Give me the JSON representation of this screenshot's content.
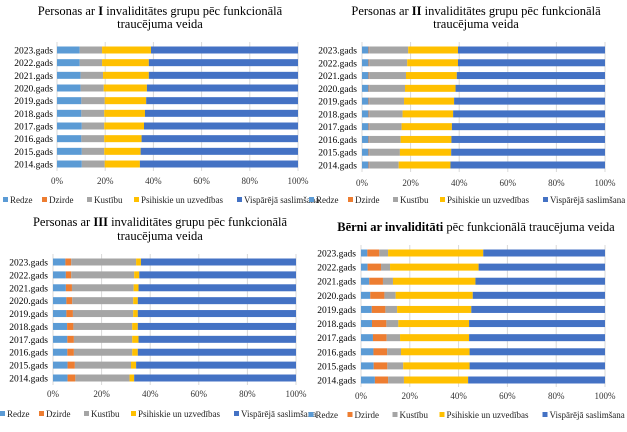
{
  "legend": [
    "Redze",
    "Dzirde",
    "Kustību",
    "Psihiskie un uzvedības",
    "Vispārējā saslimšana"
  ],
  "colors": [
    "#5B9BD5",
    "#ED7D31",
    "#A5A5A5",
    "#FFC000",
    "#4472C4"
  ],
  "chart_data": [
    {
      "type": "bar",
      "orientation": "horizontal",
      "stacked": "percent",
      "title_prefix": "Personas ar ",
      "title_bold": "I",
      "title_suffix": " invaliditātes  grupu pēc funkcionālā",
      "title_line2": "traucējuma veida",
      "categories": [
        "2014.gads",
        "2015.gads",
        "2016.gads",
        "2017.gads",
        "2018.gads",
        "2019.gads",
        "2020.gads",
        "2021.gads",
        "2022.gads",
        "2023.gads"
      ],
      "xticks": [
        "0%",
        "20%",
        "40%",
        "60%",
        "80%",
        "100%"
      ],
      "xlim": [
        0,
        100
      ],
      "grid": true,
      "legend_position": "bottom",
      "series": [
        {
          "name": "Redze",
          "values": [
            10.3,
            10.3,
            10.1,
            10.3,
            10.1,
            10.1,
            9.8,
            9.8,
            9.4,
            9.4
          ]
        },
        {
          "name": "Dzirde",
          "values": [
            0,
            0,
            0,
            0,
            0,
            0,
            0,
            0,
            0,
            0
          ]
        },
        {
          "name": "Kustību",
          "values": [
            9.5,
            9.3,
            9.5,
            9.3,
            9.5,
            9.7,
            9.6,
            9.3,
            9.3,
            9.3
          ]
        },
        {
          "name": "Psihiskie un uzvedības",
          "values": [
            14.6,
            15.1,
            15.5,
            16.5,
            16.9,
            17.2,
            17.9,
            19.0,
            19.4,
            20.3
          ]
        },
        {
          "name": "Vispārējā saslimšana",
          "values": [
            65.6,
            65.3,
            64.9,
            63.9,
            63.5,
            63.0,
            62.7,
            61.9,
            61.9,
            61.0
          ]
        }
      ]
    },
    {
      "type": "bar",
      "orientation": "horizontal",
      "stacked": "percent",
      "title_prefix": "Personas ar ",
      "title_bold": "II",
      "title_suffix": " invaliditātes grupu pēc funkcionālā",
      "title_line2": "traucējuma veida",
      "categories": [
        "2014.gads",
        "2015.gads",
        "2016.gads",
        "2017.gads",
        "2018.gads",
        "2019.gads",
        "2020.gads",
        "2021.gads",
        "2022.gads",
        "2023.gads"
      ],
      "xticks": [
        "0%",
        "20%",
        "40%",
        "60%",
        "80%",
        "100%"
      ],
      "xlim": [
        0,
        100
      ],
      "grid": true,
      "legend_position": "bottom",
      "series": [
        {
          "name": "Redze",
          "values": [
            2.7,
            2.7,
            2.7,
            2.7,
            2.7,
            2.7,
            2.7,
            2.7,
            2.7,
            2.7
          ]
        },
        {
          "name": "Dzirde",
          "values": [
            0.3,
            0.3,
            0.3,
            0.3,
            0.3,
            0.3,
            0.3,
            0.3,
            0.3,
            0.3
          ]
        },
        {
          "name": "Kustību",
          "values": [
            12.1,
            12.6,
            12.9,
            13.3,
            13.7,
            14.3,
            14.7,
            15.1,
            15.6,
            16.0
          ]
        },
        {
          "name": "Psihiskie un uzvedības",
          "values": [
            21.3,
            21.1,
            20.9,
            20.7,
            20.8,
            20.6,
            20.8,
            20.9,
            20.9,
            20.5
          ]
        },
        {
          "name": "Vispārējā saslimšana",
          "values": [
            63.6,
            63.3,
            63.2,
            63.0,
            62.5,
            62.1,
            61.5,
            61.0,
            60.5,
            60.5
          ]
        }
      ]
    },
    {
      "type": "bar",
      "orientation": "horizontal",
      "stacked": "percent",
      "title_prefix": "Personas ar ",
      "title_bold": "III",
      "title_suffix": " invaliditātes  grupu pēc funkcionālā",
      "title_line2": "traucējuma veida",
      "categories": [
        "2014.gads",
        "2015.gads",
        "2016.gads",
        "2017.gads",
        "2018.gads",
        "2019.gads",
        "2020.gads",
        "2021.gads",
        "2022.gads",
        "2023.gads"
      ],
      "xticks": [
        "0%",
        "20%",
        "40%",
        "60%",
        "80%",
        "100%"
      ],
      "xlim": [
        0,
        100
      ],
      "grid": true,
      "legend_position": "bottom",
      "series": [
        {
          "name": "Redze",
          "values": [
            6.0,
            6.0,
            5.9,
            5.9,
            5.8,
            5.5,
            5.5,
            5.3,
            5.3,
            5.1
          ]
        },
        {
          "name": "Dzirde",
          "values": [
            3.2,
            3.0,
            2.7,
            2.7,
            2.6,
            2.7,
            2.4,
            2.5,
            2.2,
            2.4
          ]
        },
        {
          "name": "Kustību",
          "values": [
            22.3,
            23.1,
            24.0,
            24.0,
            24.2,
            24.8,
            25.1,
            25.4,
            25.9,
            26.7
          ]
        },
        {
          "name": "Psihiskie un uzvedības",
          "values": [
            1.9,
            2.1,
            2.3,
            2.6,
            2.3,
            1.9,
            1.9,
            2.0,
            2.1,
            2.0
          ]
        },
        {
          "name": "Vispārējā saslimšana",
          "values": [
            66.6,
            65.8,
            65.1,
            64.8,
            65.1,
            65.1,
            65.1,
            64.8,
            64.5,
            63.8
          ]
        }
      ]
    },
    {
      "type": "bar",
      "orientation": "horizontal",
      "stacked": "percent",
      "title_prefix": "",
      "title_bold": "Bērni ar invaliditāti",
      "title_suffix": "  pēc funkcionālā traucējuma veida",
      "title_line2": "",
      "categories": [
        "2014.gads",
        "2015.gads",
        "2016.gads",
        "2017.gads",
        "2018.gads",
        "2019.gads",
        "2020.gads",
        "2021.gads",
        "2022.gads",
        "2023.gads"
      ],
      "xticks": [
        "0%",
        "20%",
        "40%",
        "60%",
        "80%",
        "100%"
      ],
      "xlim": [
        0,
        100
      ],
      "grid": true,
      "legend_position": "bottom",
      "series": [
        {
          "name": "Redze",
          "values": [
            5.7,
            5.2,
            5.1,
            4.9,
            4.5,
            4.4,
            3.8,
            3.4,
            2.7,
            2.6
          ]
        },
        {
          "name": "Dzirde",
          "values": [
            5.4,
            5.6,
            5.6,
            5.6,
            5.9,
            5.6,
            5.8,
            5.6,
            5.5,
            4.9
          ]
        },
        {
          "name": "Kustību",
          "values": [
            6.5,
            6.5,
            5.7,
            5.5,
            4.9,
            4.8,
            4.6,
            4.1,
            3.7,
            3.6
          ]
        },
        {
          "name": "Psihiskie un uzvedības",
          "values": [
            26.3,
            27.2,
            28.1,
            28.3,
            29.0,
            30.4,
            31.6,
            33.8,
            36.3,
            39.0
          ]
        },
        {
          "name": "Vispārējā saslimšana",
          "values": [
            56.1,
            55.5,
            55.5,
            55.7,
            55.7,
            54.8,
            54.2,
            53.1,
            51.8,
            49.9
          ]
        }
      ]
    }
  ]
}
